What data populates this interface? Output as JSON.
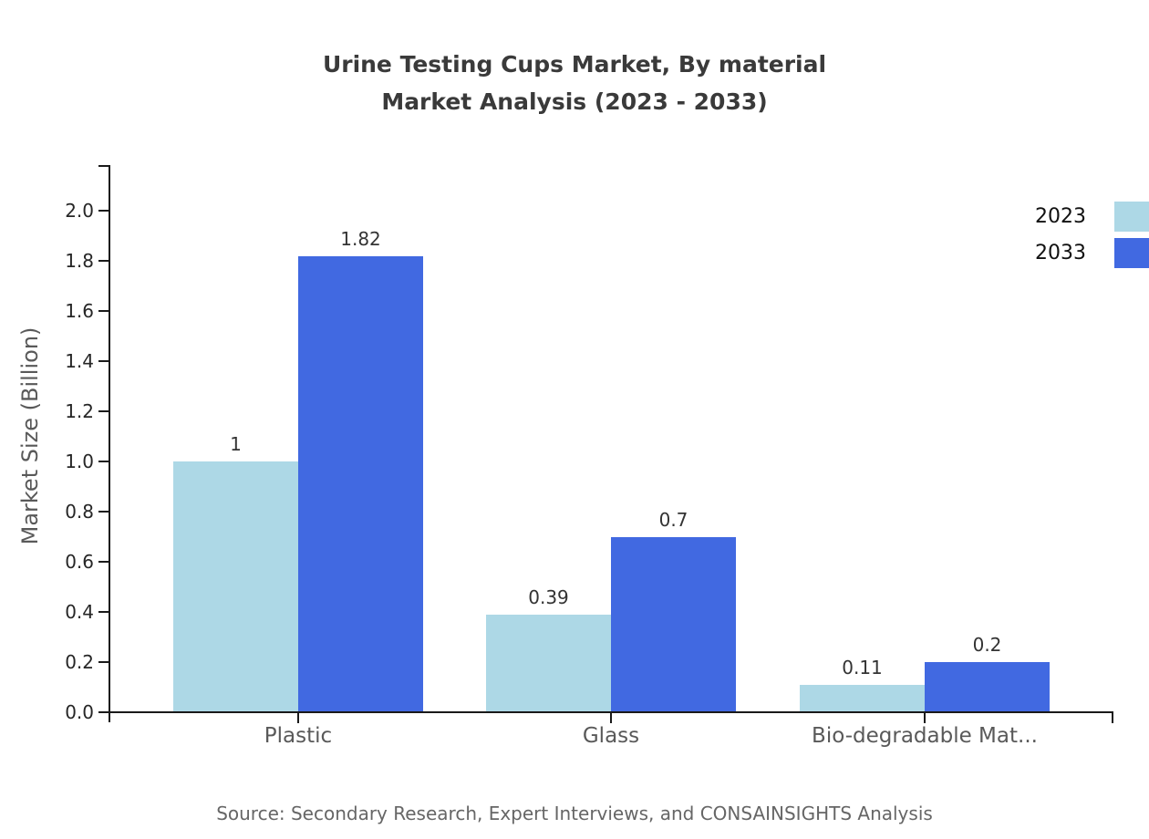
{
  "header": {
    "title_line1": "Urine Testing Cups Market, By material",
    "title_line2": "Market Analysis (2023 - 2033)"
  },
  "footer": {
    "source": "Source: Secondary Research, Expert Interviews, and CONSAINSIGHTS Analysis"
  },
  "chart_data": {
    "type": "bar",
    "title": "Urine Testing Cups Market, By material\nMarket Analysis (2023 - 2033)",
    "categories": [
      "Plastic",
      "Glass",
      "Bio-degradable Mat..."
    ],
    "series": [
      {
        "name": "2023",
        "color": "#ADD8E6",
        "values": [
          1,
          0.39,
          0.11
        ],
        "value_labels": [
          "1",
          "0.39",
          "0.11"
        ]
      },
      {
        "name": "2033",
        "color": "#4169E1",
        "values": [
          1.82,
          0.7,
          0.2
        ],
        "value_labels": [
          "1.82",
          "0.7",
          "0.2"
        ]
      }
    ],
    "xlabel": "",
    "ylabel": "Market Size (Billion)",
    "ylim": [
      0,
      2.0
    ],
    "ytick_step": 0.2,
    "ytick_labels": [
      "0.0",
      "0.2",
      "0.4",
      "0.6",
      "0.8",
      "1.0",
      "1.2",
      "1.4",
      "1.6",
      "1.8",
      "2.0"
    ],
    "grid": false,
    "legend_position": "top-right",
    "bar_value_labels_shown": true,
    "axis_color": "#1a1a1a"
  }
}
